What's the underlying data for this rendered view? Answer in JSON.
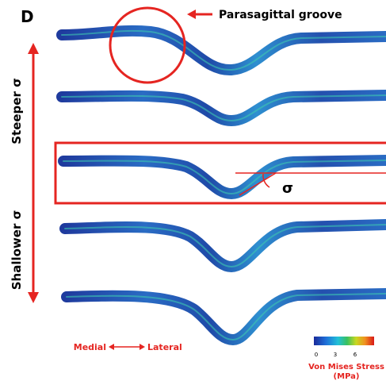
{
  "panel_label": "D",
  "annotations": {
    "groove": "Parasagittal groove",
    "steeper": "Steeper σ",
    "shallower": "Shallower σ",
    "angle": "σ",
    "medial": "Medial",
    "lateral": "Lateral"
  },
  "colorbar": {
    "ticks": [
      "0",
      "3",
      "6"
    ],
    "title": "Von Mises Stress",
    "unit": "(MPa)"
  }
}
